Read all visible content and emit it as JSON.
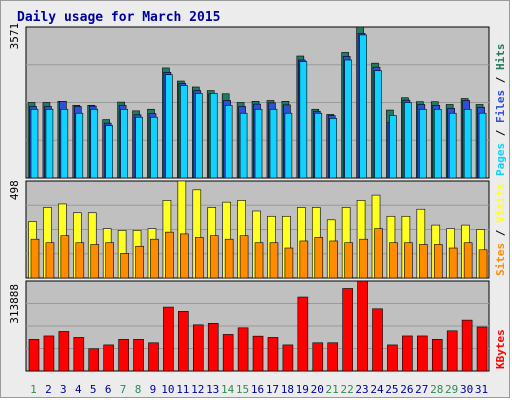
{
  "chart_data": {
    "type": "bar",
    "title": "Daily usage for March 2015",
    "days": [
      "1",
      "2",
      "3",
      "4",
      "5",
      "6",
      "7",
      "8",
      "9",
      "10",
      "11",
      "12",
      "13",
      "14",
      "15",
      "16",
      "17",
      "18",
      "19",
      "20",
      "21",
      "22",
      "23",
      "24",
      "25",
      "26",
      "27",
      "28",
      "29",
      "30",
      "31"
    ],
    "weekend_days": [
      "1",
      "7",
      "8",
      "14",
      "15",
      "21",
      "22",
      "28",
      "29"
    ],
    "colors": {
      "title": "#0000a0",
      "panel_bg": "#c0c0c0",
      "weekday_label": "#0000a0",
      "weekend_label": "#2e8b57",
      "hits": "#207b60",
      "files": "#2f4fd8",
      "pages": "#11d1ff",
      "visits": "#ffff22",
      "sites": "#ff8c00",
      "kbytes": "#ff0000"
    },
    "panels": [
      {
        "id": "hits_files_pages",
        "ymax_label": "3571",
        "ylim": [
          0,
          3800
        ],
        "legend": [
          {
            "label": "Pages",
            "color": "#11d1ff"
          },
          {
            "label": "Files",
            "color": "#2f4fd8"
          },
          {
            "label": "Hits",
            "color": "#207b60"
          }
        ],
        "separator": " / ",
        "series": [
          {
            "name": "Hits",
            "values": [
              1900,
              1900,
              1930,
              1830,
              1830,
              1470,
              1910,
              1690,
              1730,
              2770,
              2440,
              2290,
              2200,
              2120,
              1900,
              1930,
              1950,
              1930,
              3070,
              1730,
              1600,
              3160,
              3800,
              2890,
              1710,
              2020,
              1920,
              1920,
              1850,
              2000,
              1850
            ]
          },
          {
            "name": "Files",
            "values": [
              1800,
              1800,
              1930,
              1800,
              1810,
              1380,
              1830,
              1590,
              1620,
              2660,
              2380,
              2200,
              2120,
              1950,
              1800,
              1860,
              1890,
              1840,
              2970,
              1680,
              1570,
              3060,
              3640,
              2790,
              1400,
              1960,
              1850,
              1830,
              1750,
              1950,
              1780
            ]
          },
          {
            "name": "Pages",
            "values": [
              1730,
              1730,
              1730,
              1630,
              1730,
              1320,
              1730,
              1530,
              1530,
              2600,
              2330,
              2130,
              2130,
              1830,
              1630,
              1730,
              1730,
              1630,
              2930,
              1630,
              1500,
              2970,
              3600,
              2700,
              1570,
              1900,
              1730,
              1730,
              1630,
              1730,
              1630
            ]
          }
        ]
      },
      {
        "id": "visits_sites",
        "ymax_label": "498",
        "ylim": [
          0,
          550
        ],
        "legend": [
          {
            "label": "Sites",
            "color": "#ff8c00"
          },
          {
            "label": "Visits",
            "color": "#ffff22"
          }
        ],
        "separator": " / ",
        "series": [
          {
            "name": "Visits",
            "values": [
              320,
              400,
              420,
              370,
              370,
              280,
              270,
              270,
              280,
              440,
              550,
              500,
              400,
              430,
              440,
              380,
              350,
              350,
              400,
              400,
              330,
              400,
              440,
              470,
              350,
              350,
              390,
              300,
              280,
              300,
              275
            ]
          },
          {
            "name": "Sites",
            "values": [
              220,
              200,
              240,
              200,
              190,
              200,
              140,
              180,
              220,
              260,
              250,
              230,
              240,
              220,
              240,
              200,
              200,
              170,
              210,
              230,
              210,
              200,
              220,
              280,
              200,
              200,
              190,
              190,
              170,
              200,
              160
            ]
          }
        ]
      },
      {
        "id": "kbytes",
        "ymax_label": "313888",
        "ylim": [
          0,
          421000
        ],
        "legend": [
          {
            "label": "KBytes",
            "color": "#ff0000"
          }
        ],
        "separator": " / ",
        "series": [
          {
            "name": "KBytes",
            "values": [
              148000,
              164000,
              185000,
              157000,
              104000,
              122000,
              148000,
              148000,
              132000,
              299000,
              279000,
              216000,
              223000,
              171000,
              202000,
              163000,
              157000,
              122000,
              346000,
              132000,
              132000,
              386000,
              421000,
              291000,
              122000,
              164000,
              164000,
              148000,
              188000,
              238000,
              206000
            ]
          }
        ]
      }
    ]
  }
}
